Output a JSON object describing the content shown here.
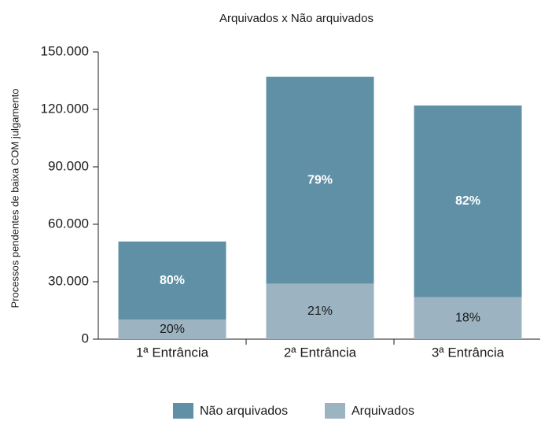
{
  "chart_data": {
    "type": "stacked_bar",
    "title": "Arquivados x Não arquivados",
    "y_label": "Processos pendentes de baixa COM julgamento",
    "categories": [
      "1ª Entrância",
      "2ª Entrância",
      "3ª Entrância"
    ],
    "series": [
      {
        "name": "Arquivados",
        "color": "#9cb3c1",
        "label_color": "#1a1a1a",
        "values": [
          10200,
          29000,
          22000
        ],
        "percent_labels": [
          "20%",
          "21%",
          "18%"
        ]
      },
      {
        "name": "Não arquivados",
        "color": "#6090a6",
        "label_color": "#ffffff",
        "values": [
          40800,
          108000,
          100000
        ],
        "percent_labels": [
          "80%",
          "79%",
          "82%"
        ]
      }
    ],
    "ylim": [
      0,
      150000
    ],
    "yticks": [
      0,
      {
        "value": 30000,
        "label": "30.000"
      },
      {
        "value": 60000,
        "label": "60.000"
      },
      {
        "value": 90000,
        "label": "90.000"
      },
      {
        "value": 120000,
        "label": "120.000"
      },
      {
        "value": 150000,
        "label": "150.000"
      }
    ],
    "grid": false
  }
}
